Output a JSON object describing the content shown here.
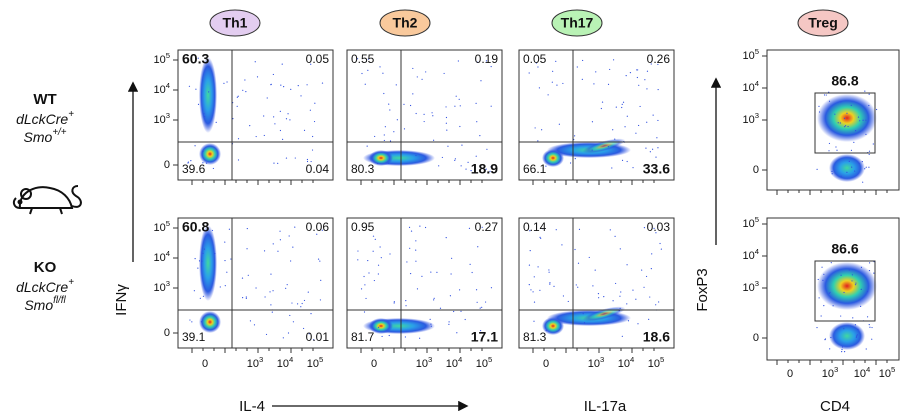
{
  "columns": [
    "Th1",
    "Th2",
    "Th17",
    "Treg"
  ],
  "column_colors": [
    "#e3cdf0",
    "#f9c99c",
    "#b9f2b5",
    "#f5c7c4"
  ],
  "rows": [
    {
      "genotype": "WT",
      "genotype_color": "#111111",
      "lines": [
        {
          "base": "dLckCre",
          "sup": "+"
        },
        {
          "base": "Smo",
          "sup": "+/+"
        }
      ],
      "panels": [
        {
          "kind": "th1",
          "q": [
            60.3,
            0.05,
            39.6,
            0.04
          ],
          "highlight": {
            "index": 0,
            "color": "#8e35b5"
          }
        },
        {
          "kind": "th2",
          "q": [
            0.55,
            0.19,
            80.3,
            18.9
          ],
          "highlight": {
            "index": 3,
            "color": "#b07a2a"
          }
        },
        {
          "kind": "th17",
          "q": [
            0.05,
            0.26,
            66.1,
            33.6
          ],
          "highlight": {
            "index": 3,
            "color": "#2b9a3b"
          }
        }
      ],
      "treg_gate": 86.8
    },
    {
      "genotype": "KO",
      "genotype_color": "#c0202a",
      "lines": [
        {
          "base": "dLckCre",
          "sup": "+"
        },
        {
          "base": "Smo",
          "sup": "fl/fl"
        }
      ],
      "panels": [
        {
          "kind": "th1",
          "q": [
            60.8,
            0.06,
            39.1,
            0.01
          ],
          "highlight": {
            "index": 0,
            "color": "#8e35b5"
          }
        },
        {
          "kind": "th2",
          "q": [
            0.95,
            0.27,
            81.7,
            17.1
          ],
          "highlight": {
            "index": 3,
            "color": "#b07a2a"
          }
        },
        {
          "kind": "th17",
          "q": [
            0.14,
            0.03,
            81.3,
            18.6
          ],
          "highlight": {
            "index": 3,
            "color": "#2b9a3b"
          }
        }
      ],
      "treg_gate": 86.6
    }
  ],
  "treg_gate_color": "#8b2a2a",
  "axes": {
    "y_label": "IFNγ",
    "x_labels": [
      "IL-4",
      "IL-17a"
    ],
    "treg_y_label": "FoxP3",
    "treg_x_label": "CD4"
  },
  "y_ticks": [
    {
      "base": "10",
      "sup": "5"
    },
    {
      "base": "10",
      "sup": "4"
    },
    {
      "base": "10",
      "sup": "3"
    },
    "0"
  ],
  "x_ticks": [
    "0",
    {
      "base": "10",
      "sup": "3"
    },
    {
      "base": "10",
      "sup": "4"
    },
    {
      "base": "10",
      "sup": "5"
    }
  ]
}
